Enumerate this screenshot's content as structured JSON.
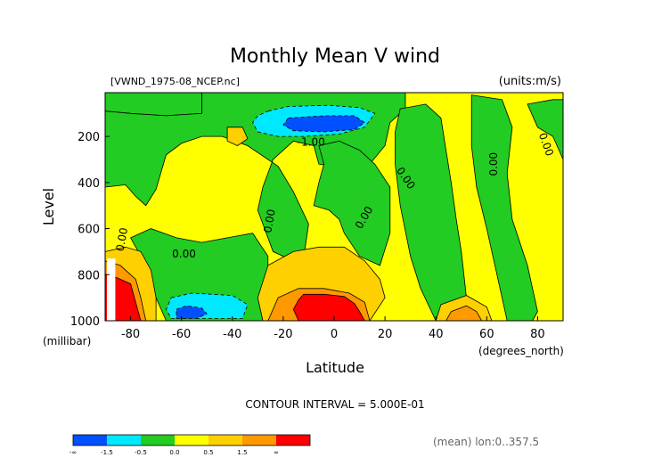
{
  "chart_data": {
    "type": "heatmap",
    "title": "Monthly Mean V wind",
    "subtitle": "[VWND_1975-08_NCEP.nc]",
    "units": "(units:m/s)",
    "xlabel": "Latitude",
    "xlabel_units": "(degrees_north)",
    "ylabel": "Level",
    "ylabel_units": "(millibar)",
    "xlim": [
      -90,
      90
    ],
    "ylim": [
      1000,
      10
    ],
    "x_ticks": [
      -80,
      -60,
      -40,
      -20,
      0,
      20,
      40,
      60,
      80
    ],
    "y_ticks": [
      200,
      400,
      600,
      800,
      1000
    ],
    "contour_interval_text": "CONTOUR INTERVAL = 5.000E-01",
    "mean_text": "(mean) lon:0..357.5",
    "contour_labels": [
      "0.00",
      "0.00",
      "-1.00",
      "0.00",
      "0.00",
      "0.00",
      "0.00",
      "0.00"
    ],
    "colorbar": {
      "labels": [
        "-∞",
        "-1.5",
        "-0.5",
        "0.0",
        "0.5",
        "1.5",
        "∞"
      ],
      "colors": [
        "#0050ff",
        "#00e8ff",
        "#22cc22",
        "#ffff00",
        "#ffd000",
        "#ff9900",
        "#ff0000"
      ]
    },
    "regions": [
      {
        "category": 3,
        "points": [
          [
            -90,
            10
          ],
          [
            90,
            10
          ],
          [
            90,
            1000
          ],
          [
            -90,
            1000
          ]
        ]
      },
      {
        "category": 2,
        "points": [
          [
            -90,
            10
          ],
          [
            -52,
            10
          ],
          [
            -52,
            100
          ],
          [
            -66,
            110
          ],
          [
            -80,
            100
          ],
          [
            -90,
            90
          ]
        ]
      },
      {
        "category": 2,
        "points": [
          [
            -52,
            10
          ],
          [
            28,
            10
          ],
          [
            28,
            80
          ],
          [
            22,
            140
          ],
          [
            20,
            240
          ],
          [
            14,
            320
          ],
          [
            6,
            340
          ],
          [
            -6,
            320
          ],
          [
            -8,
            240
          ],
          [
            -16,
            220
          ],
          [
            -24,
            300
          ],
          [
            -28,
            420
          ],
          [
            -30,
            520
          ],
          [
            -24,
            700
          ],
          [
            -16,
            740
          ],
          [
            -12,
            730
          ],
          [
            -10,
            580
          ],
          [
            -16,
            440
          ],
          [
            -22,
            330
          ],
          [
            -34,
            240
          ],
          [
            -44,
            200
          ],
          [
            -52,
            200
          ],
          [
            -60,
            230
          ],
          [
            -66,
            280
          ],
          [
            -70,
            430
          ],
          [
            -74,
            500
          ],
          [
            -78,
            460
          ],
          [
            -82,
            410
          ],
          [
            -90,
            420
          ],
          [
            -90,
            90
          ],
          [
            -80,
            100
          ],
          [
            -66,
            110
          ],
          [
            -52,
            100
          ]
        ]
      },
      {
        "category": 2,
        "points": [
          [
            -6,
            240
          ],
          [
            2,
            220
          ],
          [
            10,
            260
          ],
          [
            16,
            320
          ],
          [
            22,
            420
          ],
          [
            22,
            620
          ],
          [
            18,
            760
          ],
          [
            10,
            720
          ],
          [
            4,
            620
          ],
          [
            2,
            560
          ],
          [
            -2,
            520
          ],
          [
            -8,
            500
          ],
          [
            -6,
            400
          ],
          [
            -4,
            320
          ]
        ]
      },
      {
        "category": 2,
        "points": [
          [
            -80,
            640
          ],
          [
            -72,
            600
          ],
          [
            -62,
            640
          ],
          [
            -52,
            660
          ],
          [
            -42,
            640
          ],
          [
            -32,
            620
          ],
          [
            -26,
            720
          ],
          [
            -26,
            800
          ],
          [
            -28,
            1000
          ],
          [
            -66,
            1000
          ],
          [
            -70,
            900
          ],
          [
            -74,
            820
          ],
          [
            -76,
            720
          ]
        ]
      },
      {
        "category": 2,
        "points": [
          [
            26,
            80
          ],
          [
            36,
            60
          ],
          [
            42,
            120
          ],
          [
            44,
            260
          ],
          [
            46,
            400
          ],
          [
            48,
            560
          ],
          [
            50,
            700
          ],
          [
            52,
            900
          ],
          [
            56,
            1000
          ],
          [
            40,
            1000
          ],
          [
            34,
            860
          ],
          [
            30,
            720
          ],
          [
            26,
            500
          ],
          [
            24,
            320
          ],
          [
            24,
            180
          ]
        ]
      },
      {
        "category": 2,
        "points": [
          [
            54,
            20
          ],
          [
            66,
            40
          ],
          [
            70,
            160
          ],
          [
            68,
            360
          ],
          [
            70,
            560
          ],
          [
            76,
            760
          ],
          [
            80,
            960
          ],
          [
            78,
            1000
          ],
          [
            68,
            1000
          ],
          [
            64,
            800
          ],
          [
            60,
            600
          ],
          [
            56,
            420
          ],
          [
            54,
            240
          ]
        ]
      },
      {
        "category": 2,
        "points": [
          [
            76,
            60
          ],
          [
            86,
            40
          ],
          [
            90,
            40
          ],
          [
            90,
            300
          ],
          [
            86,
            200
          ],
          [
            80,
            160
          ]
        ]
      },
      {
        "category": 4,
        "points": [
          [
            -42,
            160
          ],
          [
            -36,
            160
          ],
          [
            -34,
            210
          ],
          [
            -38,
            240
          ],
          [
            -42,
            220
          ]
        ]
      },
      {
        "category": 4,
        "points": [
          [
            -26,
            760
          ],
          [
            -16,
            700
          ],
          [
            -6,
            680
          ],
          [
            4,
            680
          ],
          [
            12,
            740
          ],
          [
            18,
            820
          ],
          [
            20,
            900
          ],
          [
            14,
            1000
          ],
          [
            -28,
            1000
          ],
          [
            -30,
            900
          ]
        ]
      },
      {
        "category": 4,
        "points": [
          [
            -90,
            700
          ],
          [
            -82,
            680
          ],
          [
            -76,
            700
          ],
          [
            -72,
            780
          ],
          [
            -70,
            900
          ],
          [
            -70,
            1000
          ],
          [
            -90,
            1000
          ]
        ]
      },
      {
        "category": 4,
        "points": [
          [
            42,
            930
          ],
          [
            52,
            890
          ],
          [
            60,
            940
          ],
          [
            62,
            1000
          ],
          [
            40,
            1000
          ]
        ]
      },
      {
        "category": 5,
        "points": [
          [
            -22,
            900
          ],
          [
            -14,
            860
          ],
          [
            -4,
            860
          ],
          [
            6,
            880
          ],
          [
            12,
            920
          ],
          [
            14,
            1000
          ],
          [
            -26,
            1000
          ]
        ]
      },
      {
        "category": 5,
        "points": [
          [
            -90,
            740
          ],
          [
            -84,
            760
          ],
          [
            -78,
            820
          ],
          [
            -76,
            900
          ],
          [
            -74,
            1000
          ],
          [
            -90,
            1000
          ]
        ]
      },
      {
        "category": 5,
        "points": [
          [
            46,
            960
          ],
          [
            52,
            935
          ],
          [
            56,
            960
          ],
          [
            58,
            1000
          ],
          [
            44,
            1000
          ]
        ]
      },
      {
        "category": 1,
        "points": [
          [
            -26,
            90
          ],
          [
            -18,
            70
          ],
          [
            -2,
            65
          ],
          [
            10,
            75
          ],
          [
            16,
            100
          ],
          [
            12,
            160
          ],
          [
            2,
            190
          ],
          [
            -12,
            200
          ],
          [
            -22,
            200
          ],
          [
            -30,
            180
          ],
          [
            -32,
            140
          ],
          [
            -30,
            110
          ]
        ]
      },
      {
        "category": 1,
        "points": [
          [
            -64,
            900
          ],
          [
            -56,
            880
          ],
          [
            -40,
            890
          ],
          [
            -34,
            930
          ],
          [
            -36,
            990
          ],
          [
            -64,
            990
          ],
          [
            -66,
            950
          ]
        ]
      },
      {
        "category": 0,
        "points": [
          [
            -18,
            120
          ],
          [
            -4,
            110
          ],
          [
            8,
            110
          ],
          [
            12,
            140
          ],
          [
            8,
            170
          ],
          [
            -4,
            180
          ],
          [
            -16,
            175
          ],
          [
            -20,
            150
          ]
        ]
      },
      {
        "category": 0,
        "points": [
          [
            -62,
            950
          ],
          [
            -58,
            935
          ],
          [
            -52,
            945
          ],
          [
            -50,
            970
          ],
          [
            -54,
            990
          ],
          [
            -62,
            990
          ]
        ]
      },
      {
        "category": 6,
        "points": [
          [
            -12,
            885
          ],
          [
            -4,
            885
          ],
          [
            4,
            895
          ],
          [
            8,
            925
          ],
          [
            10,
            960
          ],
          [
            12,
            1000
          ],
          [
            -14,
            1000
          ],
          [
            -16,
            950
          ],
          [
            -14,
            910
          ]
        ]
      },
      {
        "category": 6,
        "points": [
          [
            -90,
            800
          ],
          [
            -86,
            810
          ],
          [
            -80,
            840
          ],
          [
            -78,
            920
          ],
          [
            -76,
            1000
          ],
          [
            -90,
            1000
          ]
        ]
      }
    ]
  }
}
